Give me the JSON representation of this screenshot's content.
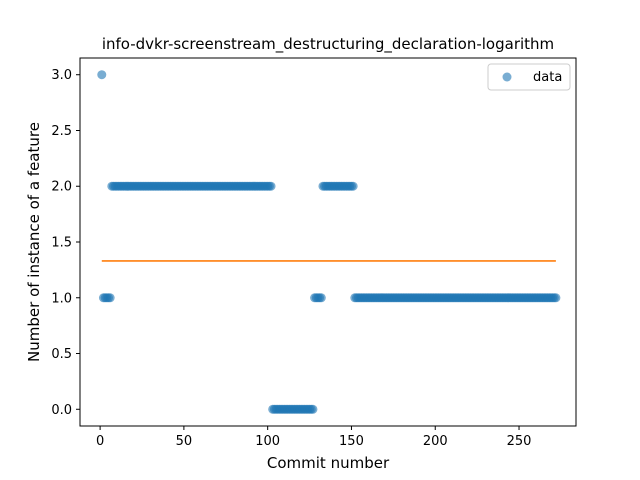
{
  "chart_data": {
    "type": "scatter",
    "title": "info-dvkr-screenstream_destructuring_declaration-logarithm",
    "xlabel": "Commit number",
    "ylabel": "Number of instance of a feature",
    "xlim": [
      -12,
      284
    ],
    "ylim": [
      -0.15,
      3.15
    ],
    "xticks": [
      0,
      50,
      100,
      150,
      200,
      250
    ],
    "yticks": [
      0.0,
      0.5,
      1.0,
      1.5,
      2.0,
      2.5,
      3.0
    ],
    "ytick_labels": [
      "0.0",
      "0.5",
      "1.0",
      "1.5",
      "2.0",
      "2.5",
      "3.0"
    ],
    "legend": {
      "position": "top-right",
      "label": "data"
    },
    "colors": {
      "points": "#1f77b4",
      "fit_line": "#ff7f0e"
    },
    "series": [
      {
        "name": "data",
        "kind": "scatter",
        "segments": [
          {
            "x_start": 1,
            "x_end": 1,
            "y": 3
          },
          {
            "x_start": 2,
            "x_end": 6,
            "y": 1
          },
          {
            "x_start": 7,
            "x_end": 102,
            "y": 2
          },
          {
            "x_start": 103,
            "x_end": 127,
            "y": 0
          },
          {
            "x_start": 128,
            "x_end": 132,
            "y": 1
          },
          {
            "x_start": 133,
            "x_end": 151,
            "y": 2
          },
          {
            "x_start": 152,
            "x_end": 272,
            "y": 1
          }
        ]
      },
      {
        "name": "fit",
        "kind": "line",
        "x": [
          1,
          272
        ],
        "y": [
          1.33,
          1.33
        ]
      }
    ]
  }
}
